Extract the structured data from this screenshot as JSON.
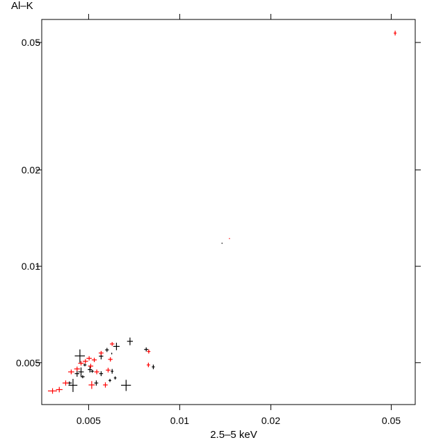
{
  "chart_data": {
    "type": "scatter",
    "title": "",
    "xlabel": "2.5–5 keV",
    "ylabel": "Al–K",
    "xscale": "log",
    "yscale": "log",
    "xlim": [
      0.0035,
      0.06
    ],
    "ylim": [
      0.0037,
      0.059
    ],
    "xticks": [
      {
        "value": 0.005,
        "label": "0.005"
      },
      {
        "value": 0.01,
        "label": "0.01"
      },
      {
        "value": 0.02,
        "label": "0.02"
      },
      {
        "value": 0.05,
        "label": "0.05"
      }
    ],
    "yticks": [
      {
        "value": 0.005,
        "label": "0.005"
      },
      {
        "value": 0.01,
        "label": "0.01"
      },
      {
        "value": 0.02,
        "label": "0.02"
      },
      {
        "value": 0.05,
        "label": "0.05"
      }
    ],
    "grid": false,
    "colors": {
      "series_black": "#000000",
      "series_red": "#ff0000"
    },
    "series": [
      {
        "color": "#000000",
        "points": [
          {
            "x": 0.00468,
            "y": 0.00525,
            "xerr": 0.00018,
            "yerr": 0.00025
          },
          {
            "x": 0.00444,
            "y": 0.00425,
            "xerr": 0.00015,
            "yerr": 0.0002
          },
          {
            "x": 0.00432,
            "y": 0.00432,
            "xerr": 8e-05,
            "yerr": 5e-05
          },
          {
            "x": 0.00458,
            "y": 0.00462,
            "xerr": 8e-05,
            "yerr": 0.0001
          },
          {
            "x": 0.00472,
            "y": 0.00468,
            "xerr": 0.0001,
            "yerr": 0.00015
          },
          {
            "x": 0.00478,
            "y": 0.00452,
            "xerr": 7e-05,
            "yerr": 5e-05
          },
          {
            "x": 0.00486,
            "y": 0.00492,
            "xerr": 6e-05,
            "yerr": 5e-05
          },
          {
            "x": 0.00505,
            "y": 0.00476,
            "xerr": 8e-05,
            "yerr": 0.0001
          },
          {
            "x": 0.00514,
            "y": 0.0047,
            "xerr": 6e-05,
            "yerr": 5e-05
          },
          {
            "x": 0.0053,
            "y": 0.00432,
            "xerr": 8e-05,
            "yerr": 8e-05
          },
          {
            "x": 0.0055,
            "y": 0.00524,
            "xerr": 9e-05,
            "yerr": 0.00012
          },
          {
            "x": 0.0055,
            "y": 0.00462,
            "xerr": 8e-05,
            "yerr": 8e-05
          },
          {
            "x": 0.00575,
            "y": 0.00548,
            "xerr": 8e-05,
            "yerr": 8e-05
          },
          {
            "x": 0.00588,
            "y": 0.0044,
            "xerr": 6e-05,
            "yerr": 5e-05
          },
          {
            "x": 0.00596,
            "y": 0.00534,
            "xerr": 2e-05,
            "yerr": 3e-05
          },
          {
            "x": 0.00598,
            "y": 0.0047,
            "xerr": 6e-05,
            "yerr": 8e-05
          },
          {
            "x": 0.00612,
            "y": 0.00448,
            "xerr": 6e-05,
            "yerr": 5e-05
          },
          {
            "x": 0.00618,
            "y": 0.00562,
            "xerr": 0.00015,
            "yerr": 0.00015
          },
          {
            "x": 0.00665,
            "y": 0.00425,
            "xerr": 0.00025,
            "yerr": 0.00017
          },
          {
            "x": 0.00685,
            "y": 0.00583,
            "xerr": 0.00015,
            "yerr": 0.00016
          },
          {
            "x": 0.00775,
            "y": 0.0055,
            "xerr": 0.00012,
            "yerr": 8e-05
          },
          {
            "x": 0.00818,
            "y": 0.00485,
            "xerr": 9e-05,
            "yerr": 8e-05
          },
          {
            "x": 0.0138,
            "y": 0.0118,
            "xerr": 3e-05,
            "yerr": 4e-05
          }
        ]
      },
      {
        "color": "#ff0000",
        "points": [
          {
            "x": 0.0038,
            "y": 0.00408,
            "xerr": 0.00013,
            "yerr": 8e-05
          },
          {
            "x": 0.004,
            "y": 0.00412,
            "xerr": 0.0001,
            "yerr": 8e-05
          },
          {
            "x": 0.0042,
            "y": 0.00432,
            "xerr": 0.0001,
            "yerr": 8e-05
          },
          {
            "x": 0.00438,
            "y": 0.00468,
            "xerr": 0.0001,
            "yerr": 8e-05
          },
          {
            "x": 0.00458,
            "y": 0.00478,
            "xerr": 0.0001,
            "yerr": 8e-05
          },
          {
            "x": 0.00472,
            "y": 0.00498,
            "xerr": 0.0001,
            "yerr": 8e-05
          },
          {
            "x": 0.00488,
            "y": 0.00505,
            "xerr": 0.0001,
            "yerr": 8e-05
          },
          {
            "x": 0.00502,
            "y": 0.00516,
            "xerr": 0.0001,
            "yerr": 8e-05
          },
          {
            "x": 0.00508,
            "y": 0.00488,
            "xerr": 0.0001,
            "yerr": 8e-05
          },
          {
            "x": 0.00512,
            "y": 0.00426,
            "xerr": 0.00012,
            "yerr": 0.00012
          },
          {
            "x": 0.00522,
            "y": 0.0051,
            "xerr": 0.0001,
            "yerr": 8e-05
          },
          {
            "x": 0.00532,
            "y": 0.00468,
            "xerr": 0.0001,
            "yerr": 8e-05
          },
          {
            "x": 0.0055,
            "y": 0.00536,
            "xerr": 0.0001,
            "yerr": 8e-05
          },
          {
            "x": 0.00568,
            "y": 0.00426,
            "xerr": 0.0001,
            "yerr": 8e-05
          },
          {
            "x": 0.0058,
            "y": 0.00474,
            "xerr": 0.0001,
            "yerr": 8e-05
          },
          {
            "x": 0.0059,
            "y": 0.00512,
            "xerr": 0.0001,
            "yerr": 8e-05
          },
          {
            "x": 0.00598,
            "y": 0.00572,
            "xerr": 0.0001,
            "yerr": 8e-05
          },
          {
            "x": 0.0079,
            "y": 0.00542,
            "xerr": 0.0001,
            "yerr": 8e-05
          },
          {
            "x": 0.00788,
            "y": 0.00492,
            "xerr": 0.0001,
            "yerr": 8e-05
          },
          {
            "x": 0.0146,
            "y": 0.0122,
            "xerr": 3e-05,
            "yerr": 4e-05
          },
          {
            "x": 0.0515,
            "y": 0.0535,
            "xerr": 0.00055,
            "yerr": 0.0009
          }
        ]
      }
    ]
  }
}
